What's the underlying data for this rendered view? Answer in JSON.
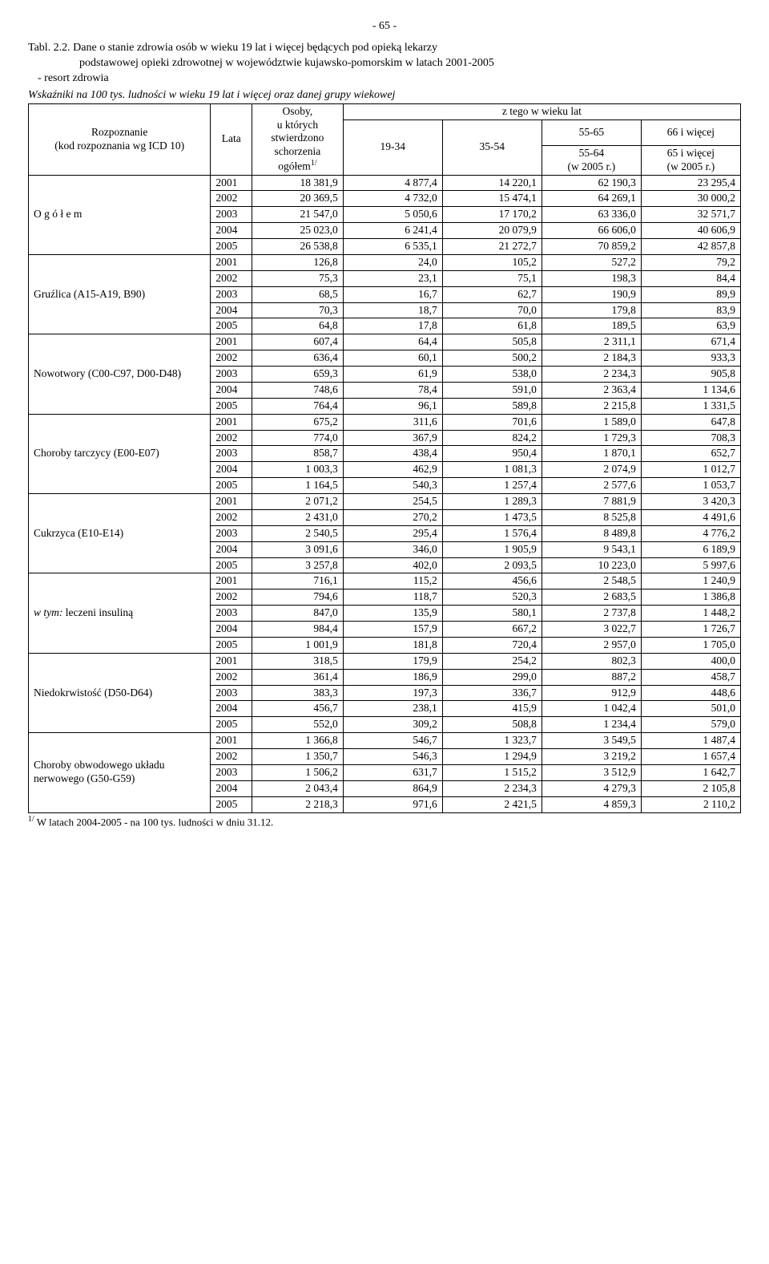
{
  "page_number": "- 65 -",
  "title": {
    "line1": "Tabl. 2.2. Dane o stanie zdrowia osób w wieku 19 lat i więcej będących pod opieką lekarzy",
    "line2": "podstawowej opieki zdrowotnej w województwie kujawsko-pomorskim w latach 2001-2005",
    "line3": "- resort zdrowia"
  },
  "subtitle": "Wskaźniki na 100 tys. ludności w wieku 19 lat i więcej oraz danej grupy wiekowej",
  "header": {
    "rozpoznanie": "Rozpoznanie\n(kod rozpoznania wg ICD 10)",
    "lata": "Lata",
    "osoby": "Osoby,\nu których\nstwierdzono\nschorzenia\nogółem",
    "osoby_sup": "1/",
    "ztego": "z tego w wieku lat",
    "c19": "19-34",
    "c35": "35-54",
    "c55a": "55-65",
    "c55b": "55-64\n(w 2005 r.)",
    "c66a": "66 i więcej",
    "c66b": "65 i więcej\n(w 2005 r.)"
  },
  "groups": [
    {
      "label": "O g ó ł e m",
      "rows": [
        [
          "2001",
          "18 381,9",
          "4 877,4",
          "14 220,1",
          "62 190,3",
          "23 295,4"
        ],
        [
          "2002",
          "20 369,5",
          "4 732,0",
          "15 474,1",
          "64 269,1",
          "30 000,2"
        ],
        [
          "2003",
          "21 547,0",
          "5 050,6",
          "17 170,2",
          "63 336,0",
          "32 571,7"
        ],
        [
          "2004",
          "25 023,0",
          "6 241,4",
          "20 079,9",
          "66 606,0",
          "40 606,9"
        ],
        [
          "2005",
          "26 538,8",
          "6 535,1",
          "21 272,7",
          "70 859,2",
          "42 857,8"
        ]
      ],
      "thick": true
    },
    {
      "label": "Gruźlica (A15-A19, B90)",
      "rows": [
        [
          "2001",
          "126,8",
          "24,0",
          "105,2",
          "527,2",
          "79,2"
        ],
        [
          "2002",
          "75,3",
          "23,1",
          "75,1",
          "198,3",
          "84,4"
        ],
        [
          "2003",
          "68,5",
          "16,7",
          "62,7",
          "190,9",
          "89,9"
        ],
        [
          "2004",
          "70,3",
          "18,7",
          "70,0",
          "179,8",
          "83,9"
        ],
        [
          "2005",
          "64,8",
          "17,8",
          "61,8",
          "189,5",
          "63,9"
        ]
      ]
    },
    {
      "label": "Nowotwory (C00-C97, D00-D48)",
      "rows": [
        [
          "2001",
          "607,4",
          "64,4",
          "505,8",
          "2 311,1",
          "671,4"
        ],
        [
          "2002",
          "636,4",
          "60,1",
          "500,2",
          "2 184,3",
          "933,3"
        ],
        [
          "2003",
          "659,3",
          "61,9",
          "538,0",
          "2 234,3",
          "905,8"
        ],
        [
          "2004",
          "748,6",
          "78,4",
          "591,0",
          "2 363,4",
          "1 134,6"
        ],
        [
          "2005",
          "764,4",
          "96,1",
          "589,8",
          "2 215,8",
          "1 331,5"
        ]
      ]
    },
    {
      "label": "Choroby tarczycy (E00-E07)",
      "rows": [
        [
          "2001",
          "675,2",
          "311,6",
          "701,6",
          "1 589,0",
          "647,8"
        ],
        [
          "2002",
          "774,0",
          "367,9",
          "824,2",
          "1 729,3",
          "708,3"
        ],
        [
          "2003",
          "858,7",
          "438,4",
          "950,4",
          "1 870,1",
          "652,7"
        ],
        [
          "2004",
          "1 003,3",
          "462,9",
          "1 081,3",
          "2 074,9",
          "1 012,7"
        ],
        [
          "2005",
          "1 164,5",
          "540,3",
          "1 257,4",
          "2 577,6",
          "1 053,7"
        ]
      ]
    },
    {
      "label": "Cukrzyca (E10-E14)",
      "rows": [
        [
          "2001",
          "2 071,2",
          "254,5",
          "1 289,3",
          "7 881,9",
          "3 420,3"
        ],
        [
          "2002",
          "2 431,0",
          "270,2",
          "1 473,5",
          "8 525,8",
          "4 491,6"
        ],
        [
          "2003",
          "2 540,5",
          "295,4",
          "1 576,4",
          "8 489,8",
          "4 776,2"
        ],
        [
          "2004",
          "3 091,6",
          "346,0",
          "1 905,9",
          "9 543,1",
          "6 189,9"
        ],
        [
          "2005",
          "3 257,8",
          "402,0",
          "2 093,5",
          "10 223,0",
          "5 997,6"
        ]
      ]
    },
    {
      "label": "w tym:  leczeni insuliną",
      "italicPrefix": "w tym:",
      "rows": [
        [
          "2001",
          "716,1",
          "115,2",
          "456,6",
          "2 548,5",
          "1 240,9"
        ],
        [
          "2002",
          "794,6",
          "118,7",
          "520,3",
          "2 683,5",
          "1 386,8"
        ],
        [
          "2003",
          "847,0",
          "135,9",
          "580,1",
          "2 737,8",
          "1 448,2"
        ],
        [
          "2004",
          "984,4",
          "157,9",
          "667,2",
          "3 022,7",
          "1 726,7"
        ],
        [
          "2005",
          "1 001,9",
          "181,8",
          "720,4",
          "2 957,0",
          "1 705,0"
        ]
      ]
    },
    {
      "label": "Niedokrwistość (D50-D64)",
      "rows": [
        [
          "2001",
          "318,5",
          "179,9",
          "254,2",
          "802,3",
          "400,0"
        ],
        [
          "2002",
          "361,4",
          "186,9",
          "299,0",
          "887,2",
          "458,7"
        ],
        [
          "2003",
          "383,3",
          "197,3",
          "336,7",
          "912,9",
          "448,6"
        ],
        [
          "2004",
          "456,7",
          "238,1",
          "415,9",
          "1 042,4",
          "501,0"
        ],
        [
          "2005",
          "552,0",
          "309,2",
          "508,8",
          "1 234,4",
          "579,0"
        ]
      ]
    },
    {
      "label": "Choroby obwodowego układu nerwowego (G50-G59)",
      "rows": [
        [
          "2001",
          "1 366,8",
          "546,7",
          "1 323,7",
          "3 549,5",
          "1 487,4"
        ],
        [
          "2002",
          "1 350,7",
          "546,3",
          "1 294,9",
          "3 219,2",
          "1 657,4"
        ],
        [
          "2003",
          "1 506,2",
          "631,7",
          "1 515,2",
          "3 512,9",
          "1 642,7"
        ],
        [
          "2004",
          "2 043,4",
          "864,9",
          "2 234,3",
          "4 279,3",
          "2 105,8"
        ],
        [
          "2005",
          "2 218,3",
          "971,6",
          "2 421,5",
          "4 859,3",
          "2 110,2"
        ]
      ]
    }
  ],
  "footnote": {
    "sup": "1/",
    "text": " W latach 2004-2005 - na 100 tys. ludności w dniu 31.12."
  }
}
